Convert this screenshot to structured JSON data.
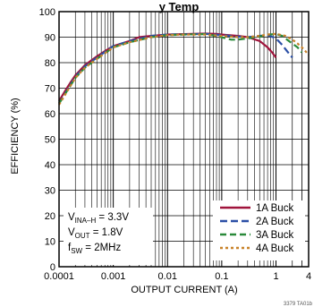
{
  "chart_data": {
    "type": "line",
    "title": "y Temp",
    "xlabel": "OUTPUT CURRENT (A)",
    "ylabel": "EFFICIENCY (%)",
    "xscale": "log",
    "xlim": [
      0.0001,
      4
    ],
    "ylim": [
      0,
      100
    ],
    "grid": true,
    "legend_position": "bottom-right",
    "x_tick_labels": [
      "0.0001",
      "0.001",
      "0.01",
      "0.1",
      "1",
      "4"
    ],
    "x_tick_values": [
      0.0001,
      0.001,
      0.01,
      0.1,
      1,
      4
    ],
    "y_tick_values": [
      0,
      10,
      20,
      30,
      40,
      50,
      60,
      70,
      80,
      90,
      100
    ],
    "y_tick_labels": [
      "0",
      "10",
      "20",
      "30",
      "40",
      "50",
      "60",
      "70",
      "80",
      "90",
      "100"
    ],
    "conditions": [
      {
        "pre": "V",
        "sub": "INA–H",
        "post": " = 3.3V"
      },
      {
        "pre": "V",
        "sub": "OUT",
        "post": " = 1.8V"
      },
      {
        "pre": "f",
        "sub": "SW",
        "post": " = 2MHz"
      }
    ],
    "reference": "3379 TA01b",
    "series": [
      {
        "name": "1A Buck",
        "color": "#a0143c",
        "dash": "",
        "x": [
          0.0001,
          0.00013,
          0.00016,
          0.0002,
          0.0003,
          0.0005,
          0.0007,
          0.001,
          0.002,
          0.003,
          0.005,
          0.01,
          0.02,
          0.05,
          0.08,
          0.1,
          0.2,
          0.3,
          0.5,
          0.7,
          0.85,
          1.0
        ],
        "y": [
          65,
          69,
          72,
          75,
          79,
          82.5,
          84.5,
          86.5,
          88.5,
          90,
          90.5,
          91,
          91.2,
          91.4,
          91.3,
          91,
          90.5,
          90,
          88.5,
          86,
          84,
          82
        ]
      },
      {
        "name": "2A Buck",
        "color": "#2b4fa6",
        "dash": "8,4",
        "x": [
          0.0001,
          0.0002,
          0.0003,
          0.0005,
          0.001,
          0.002,
          0.005,
          0.01,
          0.03,
          0.05,
          0.1,
          0.2,
          0.3,
          0.5,
          0.7,
          1.0,
          1.3,
          1.6,
          2.0
        ],
        "y": [
          64,
          74.5,
          78.5,
          82,
          86.5,
          88.5,
          90.5,
          91,
          91.2,
          91.3,
          90.8,
          90.2,
          90,
          90.5,
          90.8,
          89.5,
          87,
          84.5,
          82
        ]
      },
      {
        "name": "3A Buck",
        "color": "#2a8a3a",
        "dash": "7,4",
        "x": [
          0.0001,
          0.0002,
          0.0003,
          0.0005,
          0.001,
          0.002,
          0.005,
          0.01,
          0.02,
          0.05,
          0.08,
          0.12,
          0.15,
          0.2,
          0.3,
          0.5,
          0.7,
          1.0,
          1.3,
          1.6,
          2.0,
          2.5,
          3.0
        ],
        "y": [
          64,
          74,
          78,
          81.5,
          86,
          88,
          90,
          90.8,
          91,
          91.2,
          90.5,
          89.5,
          89,
          89,
          89.5,
          90.2,
          91,
          91.2,
          90.5,
          89,
          87.5,
          86,
          84
        ]
      },
      {
        "name": "4A Buck",
        "color": "#c8822a",
        "dash": "3,3",
        "x": [
          0.0001,
          0.0002,
          0.0003,
          0.0005,
          0.001,
          0.002,
          0.005,
          0.01,
          0.02,
          0.05,
          0.1,
          0.2,
          0.3,
          0.5,
          0.7,
          1.0,
          1.5,
          2.0,
          2.5,
          3.0,
          3.5,
          4.0
        ],
        "y": [
          63.5,
          74,
          78,
          81.5,
          86,
          88,
          90,
          90.8,
          91,
          91,
          90.5,
          90,
          90,
          90.5,
          91,
          91.3,
          90.5,
          89,
          87.5,
          86,
          84.5,
          83
        ]
      }
    ]
  }
}
